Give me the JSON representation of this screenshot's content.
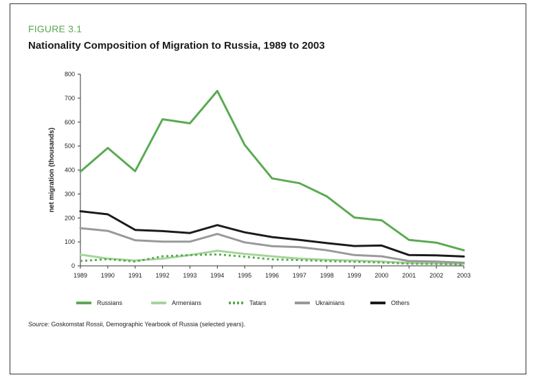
{
  "figure": {
    "label": "FIGURE 3.1",
    "title": "Nationality Composition of Migration to Russia, 1989 to 2003"
  },
  "source": {
    "label": "Source:",
    "text": " Goskomstat Rossii, Demographic Yearbook of Russia (selected years)."
  },
  "colors": {
    "russians": "#5aaa52",
    "armenians": "#a6d49c",
    "tatars": "#5aaa52",
    "ukrainians": "#999999",
    "others": "#1a1a1a",
    "axis": "#333333"
  },
  "chart_data": {
    "type": "line",
    "title": "Nationality Composition of Migration to Russia, 1989 to 2003",
    "xlabel": "",
    "ylabel": "net migration (thousands)",
    "ylim": [
      0,
      800
    ],
    "yticks": [
      0,
      100,
      200,
      300,
      400,
      500,
      600,
      700,
      800
    ],
    "grid": false,
    "legend_position": "bottom",
    "categories": [
      "1989",
      "1990",
      "1991",
      "1992",
      "1993",
      "1994",
      "1995",
      "1996",
      "1997",
      "1998",
      "1999",
      "2000",
      "2001",
      "2002",
      "2003"
    ],
    "series": [
      {
        "name": "Russians",
        "style": "solid",
        "values": [
          393,
          492,
          395,
          612,
          595,
          730,
          505,
          365,
          345,
          290,
          202,
          190,
          108,
          97,
          65
        ]
      },
      {
        "name": "Armenians",
        "style": "solid",
        "values": [
          47,
          30,
          22,
          30,
          45,
          63,
          50,
          40,
          30,
          25,
          22,
          18,
          12,
          10,
          8
        ]
      },
      {
        "name": "Tatars",
        "style": "dotted",
        "values": [
          20,
          28,
          18,
          40,
          45,
          48,
          38,
          27,
          24,
          20,
          17,
          14,
          9,
          8,
          6
        ]
      },
      {
        "name": "Ukrainians",
        "style": "solid",
        "values": [
          157,
          146,
          107,
          101,
          101,
          133,
          98,
          82,
          78,
          65,
          45,
          40,
          20,
          18,
          13
        ]
      },
      {
        "name": "Others",
        "style": "solid",
        "values": [
          228,
          215,
          150,
          145,
          137,
          170,
          140,
          120,
          108,
          95,
          83,
          85,
          45,
          44,
          39
        ]
      }
    ]
  }
}
